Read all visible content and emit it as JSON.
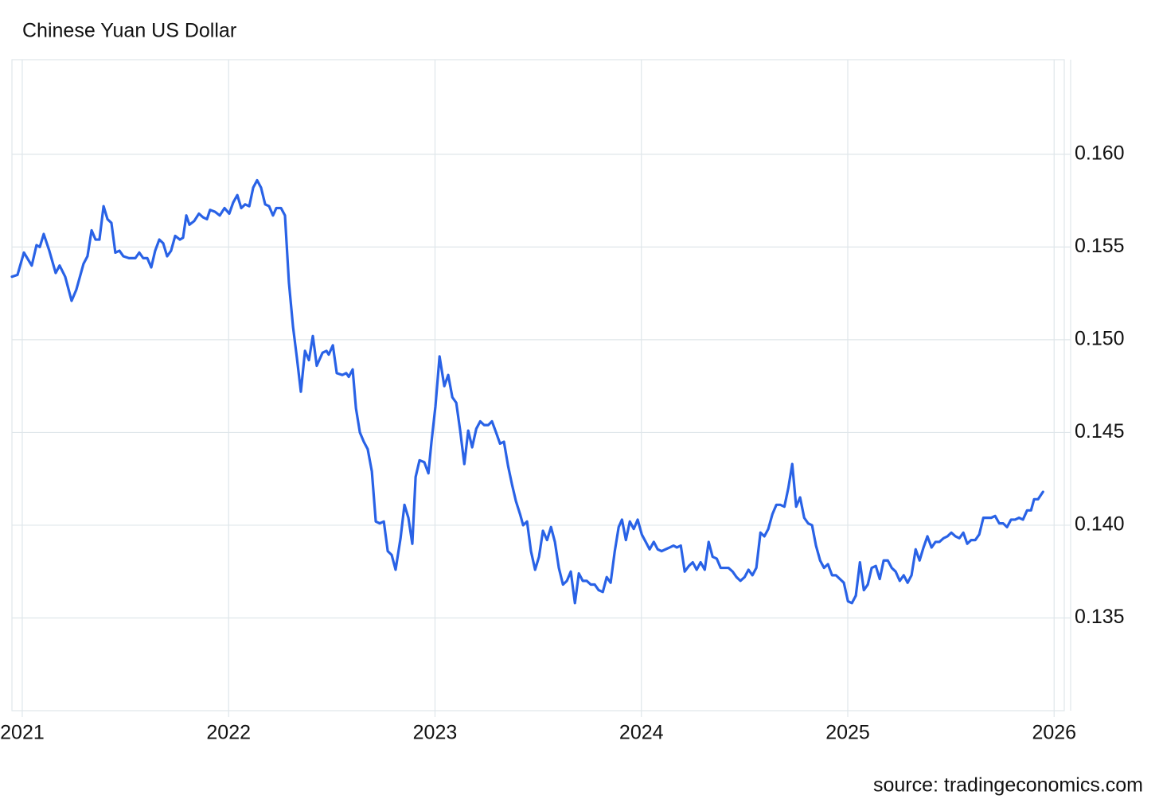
{
  "chart_data": {
    "type": "line",
    "title": "Chinese Yuan US Dollar",
    "source": "source: tradingeconomics.com",
    "color": "#2962e6",
    "grid": true,
    "xlim": [
      2020.95,
      2026.08
    ],
    "ylim": [
      0.13,
      0.1651
    ],
    "xticks": [
      2021,
      2022,
      2023,
      2024,
      2025,
      2026
    ],
    "yticks": [
      0.135,
      {
        "value": 0.14,
        "label": "0.140"
      },
      0.145,
      {
        "value": 0.15,
        "label": "0.150"
      },
      0.155,
      {
        "value": 0.16,
        "label": "0.160"
      }
    ],
    "x": [
      2020.95,
      2020.977,
      2021.008,
      2021.046,
      2021.069,
      2021.085,
      2021.104,
      2021.131,
      2021.162,
      2021.181,
      2021.208,
      2021.239,
      2021.262,
      2021.297,
      2021.316,
      2021.336,
      2021.355,
      2021.374,
      2021.394,
      2021.413,
      2021.432,
      2021.451,
      2021.471,
      2021.49,
      2021.517,
      2021.548,
      2021.567,
      2021.586,
      2021.606,
      2021.625,
      2021.644,
      2021.664,
      2021.683,
      2021.702,
      2021.721,
      2021.741,
      2021.764,
      2021.779,
      2021.795,
      2021.81,
      2021.833,
      2021.856,
      2021.876,
      2021.895,
      2021.91,
      2021.934,
      2021.957,
      2021.98,
      2022.003,
      2022.022,
      2022.042,
      2022.061,
      2022.08,
      2022.1,
      2022.119,
      2022.138,
      2022.157,
      2022.177,
      2022.196,
      2022.215,
      2022.231,
      2022.254,
      2022.273,
      2022.292,
      2022.312,
      2022.331,
      2022.35,
      2022.37,
      2022.389,
      2022.408,
      2022.427,
      2022.455,
      2022.474,
      2022.485,
      2022.505,
      2022.524,
      2022.551,
      2022.57,
      2022.582,
      2022.601,
      2022.617,
      2022.636,
      2022.655,
      2022.674,
      2022.694,
      2022.713,
      2022.732,
      2022.752,
      2022.771,
      2022.79,
      2022.809,
      2022.833,
      2022.852,
      2022.871,
      2022.89,
      2022.906,
      2022.925,
      2022.948,
      2022.968,
      2022.983,
      2023.002,
      2023.022,
      2023.045,
      2023.064,
      2023.084,
      2023.103,
      2023.122,
      2023.142,
      2023.161,
      2023.18,
      2023.2,
      2023.219,
      2023.238,
      2023.258,
      2023.276,
      2023.296,
      2023.315,
      2023.334,
      2023.354,
      2023.373,
      2023.392,
      2023.412,
      2023.427,
      2023.446,
      2023.465,
      2023.485,
      2023.504,
      2023.523,
      2023.543,
      2023.562,
      2023.581,
      2023.6,
      2023.62,
      2023.639,
      2023.658,
      2023.678,
      2023.697,
      2023.716,
      2023.735,
      2023.755,
      2023.774,
      2023.793,
      2023.813,
      2023.832,
      2023.851,
      2023.871,
      2023.89,
      2023.906,
      2023.925,
      2023.944,
      2023.963,
      2023.982,
      2024.002,
      2024.021,
      2024.04,
      2024.06,
      2024.079,
      2024.098,
      2024.117,
      2024.137,
      2024.156,
      2024.172,
      2024.191,
      2024.21,
      2024.23,
      2024.249,
      2024.268,
      2024.287,
      2024.307,
      2024.326,
      2024.345,
      2024.365,
      2024.384,
      2024.403,
      2024.422,
      2024.442,
      2024.461,
      2024.48,
      2024.5,
      2024.519,
      2024.538,
      2024.557,
      2024.577,
      2024.596,
      2024.615,
      2024.635,
      2024.654,
      2024.673,
      2024.693,
      2024.712,
      2024.731,
      2024.75,
      2024.769,
      2024.789,
      2024.808,
      2024.827,
      2024.846,
      2024.866,
      2024.885,
      2024.904,
      2024.924,
      2024.943,
      2024.962,
      2024.981,
      2025.001,
      2025.02,
      2025.039,
      2025.059,
      2025.078,
      2025.097,
      2025.116,
      2025.136,
      2025.155,
      2025.174,
      2025.194,
      2025.213,
      2025.232,
      2025.252,
      2025.271,
      2025.29,
      2025.309,
      2025.329,
      2025.348,
      2025.367,
      2025.386,
      2025.406,
      2025.425,
      2025.444,
      2025.464,
      2025.483,
      2025.502,
      2025.522,
      2025.541,
      2025.56,
      2025.579,
      2025.598,
      2025.618,
      2025.637,
      2025.657,
      2025.676,
      2025.695,
      2025.714,
      2025.734,
      2025.753,
      2025.772,
      2025.791,
      2025.811,
      2025.83,
      2025.849,
      2025.869,
      2025.888,
      2025.903,
      2025.922,
      2025.946
    ],
    "values": [
      0.1534,
      0.1535,
      0.1547,
      0.154,
      0.1551,
      0.155,
      0.1557,
      0.1548,
      0.1536,
      0.154,
      0.1534,
      0.1521,
      0.1527,
      0.1541,
      0.1545,
      0.1559,
      0.1554,
      0.1554,
      0.1572,
      0.1565,
      0.1563,
      0.1547,
      0.1548,
      0.1545,
      0.1544,
      0.1544,
      0.1547,
      0.1544,
      0.1544,
      0.1539,
      0.1548,
      0.1554,
      0.1552,
      0.1545,
      0.1548,
      0.1556,
      0.1554,
      0.1555,
      0.1567,
      0.1562,
      0.1564,
      0.1568,
      0.1566,
      0.1565,
      0.157,
      0.1569,
      0.1567,
      0.1571,
      0.1568,
      0.1574,
      0.1578,
      0.1571,
      0.1573,
      0.1572,
      0.1582,
      0.1586,
      0.1582,
      0.1573,
      0.1572,
      0.1567,
      0.1571,
      0.1571,
      0.1567,
      0.1531,
      0.1507,
      0.149,
      0.1472,
      0.1494,
      0.1489,
      0.1502,
      0.1486,
      0.1493,
      0.1494,
      0.1492,
      0.1497,
      0.1482,
      0.1481,
      0.1482,
      0.148,
      0.1484,
      0.1463,
      0.145,
      0.1445,
      0.1441,
      0.1429,
      0.1402,
      0.1401,
      0.1402,
      0.1386,
      0.1384,
      0.1376,
      0.1393,
      0.1411,
      0.1404,
      0.139,
      0.1426,
      0.1435,
      0.1434,
      0.1428,
      0.1445,
      0.1464,
      0.1491,
      0.1475,
      0.1481,
      0.1469,
      0.1466,
      0.1451,
      0.1433,
      0.1451,
      0.1442,
      0.1452,
      0.1456,
      0.1454,
      0.1454,
      0.1456,
      0.145,
      0.1444,
      0.1445,
      0.1432,
      0.1422,
      0.1413,
      0.1406,
      0.14,
      0.1402,
      0.1386,
      0.1376,
      0.1383,
      0.1397,
      0.1392,
      0.1399,
      0.1391,
      0.1377,
      0.1368,
      0.137,
      0.1375,
      0.1358,
      0.1374,
      0.137,
      0.137,
      0.1368,
      0.1368,
      0.1365,
      0.1364,
      0.1372,
      0.1369,
      0.1386,
      0.1399,
      0.1403,
      0.1392,
      0.1402,
      0.1398,
      0.1403,
      0.1395,
      0.1391,
      0.1387,
      0.1391,
      0.1387,
      0.1386,
      0.1387,
      0.1388,
      0.1389,
      0.1388,
      0.1389,
      0.1375,
      0.1378,
      0.138,
      0.1376,
      0.138,
      0.1376,
      0.1391,
      0.1383,
      0.1382,
      0.1377,
      0.1377,
      0.1377,
      0.1375,
      0.1372,
      0.137,
      0.1372,
      0.1376,
      0.1373,
      0.1377,
      0.1396,
      0.1394,
      0.1398,
      0.1406,
      0.1411,
      0.1411,
      0.141,
      0.142,
      0.1433,
      0.141,
      0.1415,
      0.1404,
      0.1401,
      0.14,
      0.1389,
      0.1381,
      0.1377,
      0.1379,
      0.1373,
      0.1373,
      0.1371,
      0.1369,
      0.1359,
      0.1358,
      0.1362,
      0.138,
      0.1365,
      0.1368,
      0.1377,
      0.1378,
      0.1371,
      0.1381,
      0.1381,
      0.1377,
      0.1375,
      0.137,
      0.1373,
      0.1369,
      0.1373,
      0.1387,
      0.1381,
      0.1388,
      0.1394,
      0.1388,
      0.1391,
      0.1391,
      0.1393,
      0.1394,
      0.1396,
      0.1394,
      0.1393,
      0.1396,
      0.139,
      0.1392,
      0.1392,
      0.1395,
      0.1404,
      0.1404,
      0.1404,
      0.1405,
      0.1401,
      0.1401,
      0.1399,
      0.1403,
      0.1403,
      0.1404,
      0.1403,
      0.1408,
      0.1408,
      0.1414,
      0.1414,
      0.1418
    ]
  }
}
